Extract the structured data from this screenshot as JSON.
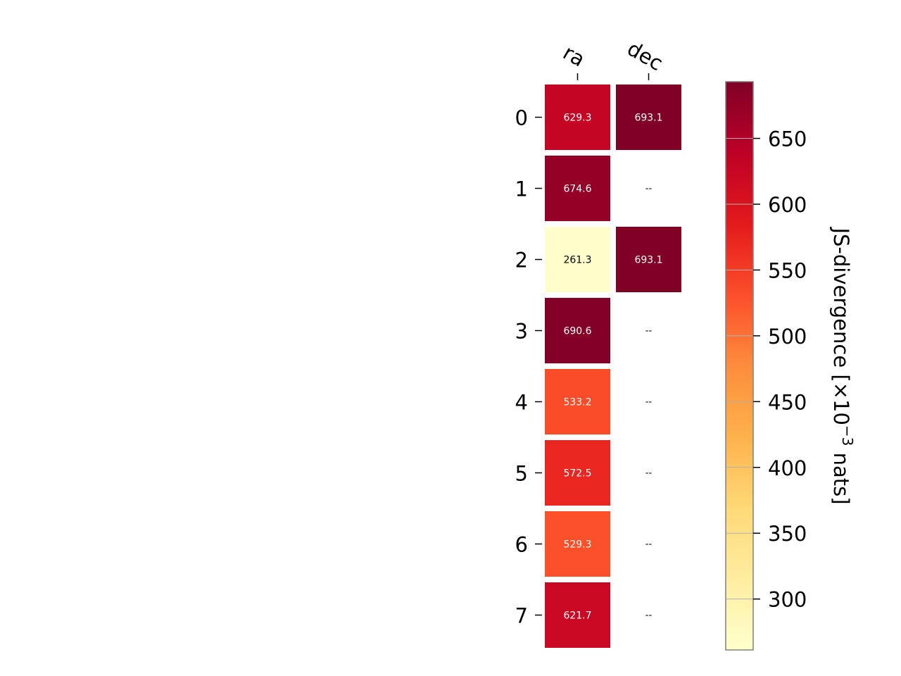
{
  "chart_data": {
    "type": "heatmap",
    "title": "",
    "columns": [
      "ra",
      "dec"
    ],
    "rows": [
      "0",
      "1",
      "2",
      "3",
      "4",
      "5",
      "6",
      "7"
    ],
    "values": [
      [
        629.3,
        693.1
      ],
      [
        674.6,
        null
      ],
      [
        261.3,
        693.1
      ],
      [
        690.6,
        null
      ],
      [
        533.2,
        null
      ],
      [
        572.5,
        null
      ],
      [
        529.3,
        null
      ],
      [
        621.7,
        null
      ]
    ],
    "cell_labels": [
      [
        "629.3",
        "693.1"
      ],
      [
        "674.6",
        "--"
      ],
      [
        "261.3",
        "693.1"
      ],
      [
        "690.6",
        "--"
      ],
      [
        "533.2",
        "--"
      ],
      [
        "572.5",
        "--"
      ],
      [
        "529.3",
        "--"
      ],
      [
        "621.7",
        "--"
      ]
    ],
    "colorbar": {
      "label": "JS-divergence [×10",
      "label_exponent": "−3",
      "label_suffix": " nats]",
      "range": [
        261.3,
        693.1
      ],
      "ticks": [
        300,
        350,
        400,
        450,
        500,
        550,
        600,
        650
      ],
      "tick_labels": [
        "300",
        "350",
        "400",
        "450",
        "500",
        "550",
        "600",
        "650"
      ],
      "colormap": "YlOrRd",
      "colormap_stops": [
        "#ffffcc",
        "#ffeda0",
        "#fed976",
        "#feb24c",
        "#fd8d3c",
        "#fc4e2a",
        "#e31a1c",
        "#bd0026",
        "#800026"
      ]
    }
  }
}
